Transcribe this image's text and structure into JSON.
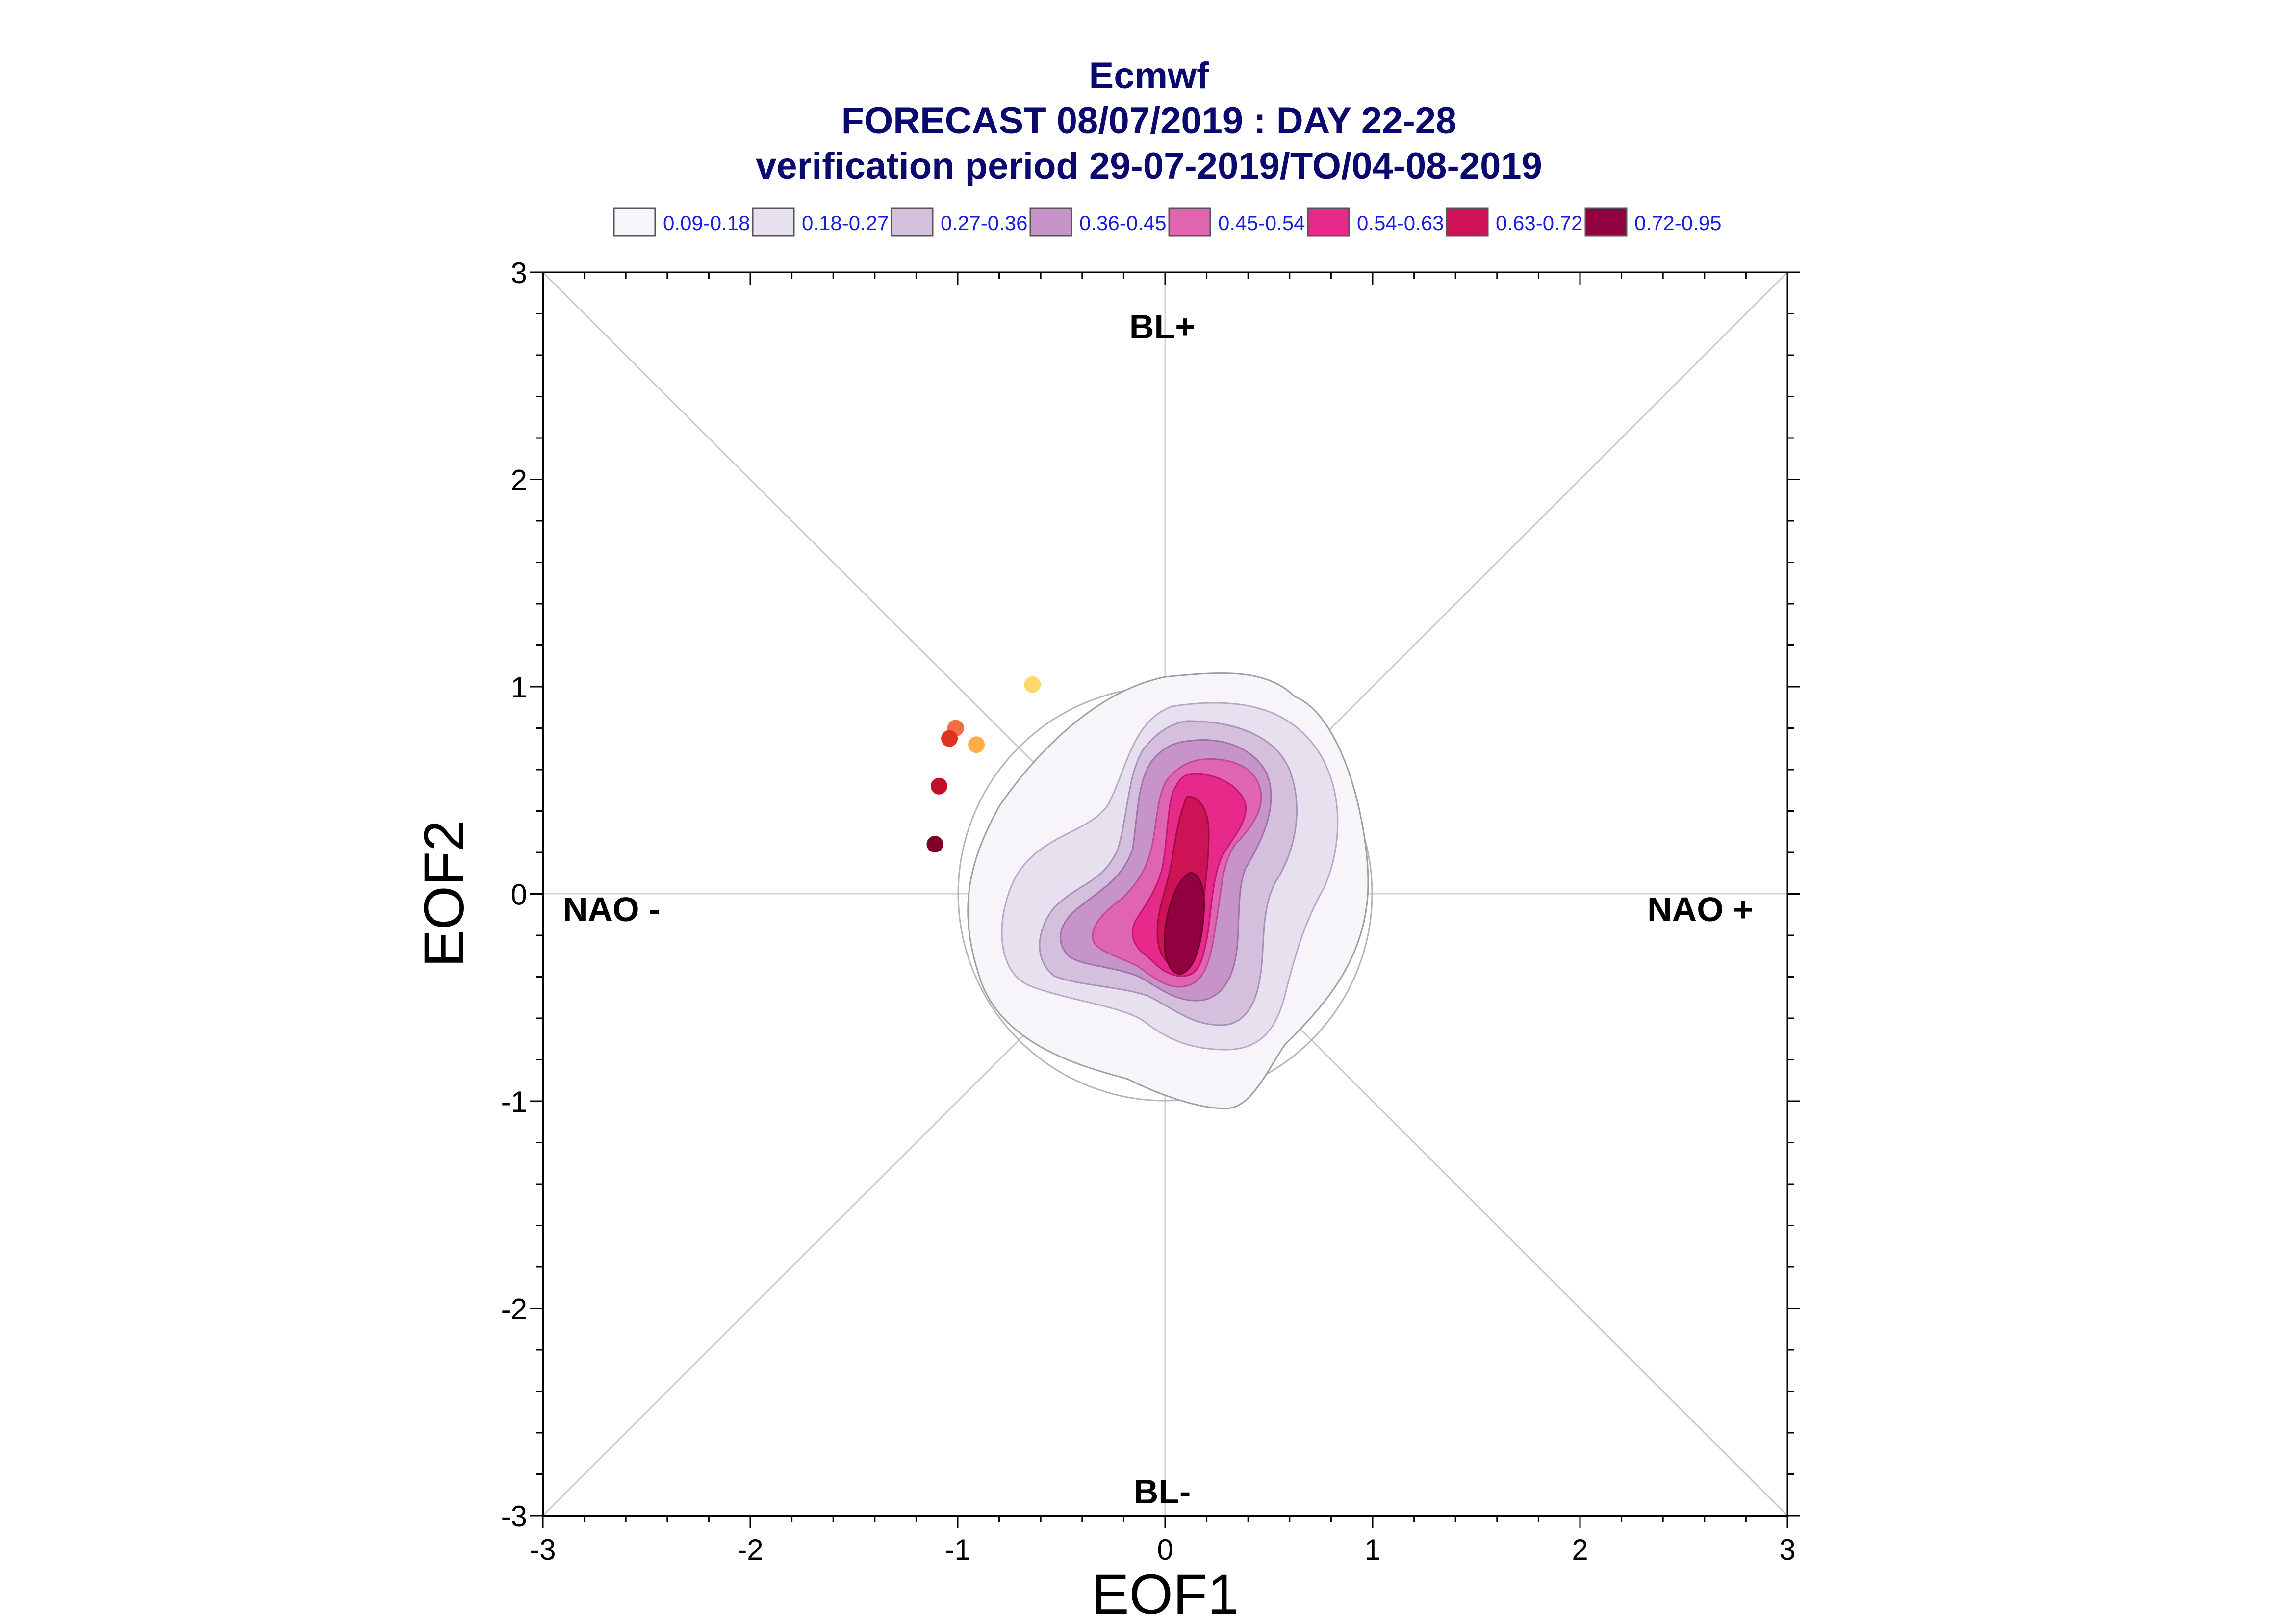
{
  "chart_data": {
    "type": "scatter",
    "title_lines": [
      "Ecmwf",
      "FORECAST 08/07/2019 : DAY 22-28",
      "verification period 29-07-2019/TO/04-08-2019"
    ],
    "xlabel": "EOF1",
    "ylabel": "EOF2",
    "xlim": [
      -3,
      3
    ],
    "ylim": [
      -3,
      3
    ],
    "x_ticks": [
      "-3",
      "-2",
      "-1",
      "0",
      "1",
      "2",
      "3"
    ],
    "y_ticks": [
      "-3",
      "-2",
      "-1",
      "0",
      "1",
      "2",
      "3"
    ],
    "regime_labels": {
      "top": "BL+",
      "bottom": "BL-",
      "left": "NAO -",
      "right": "NAO +"
    },
    "legend": [
      {
        "label": "0.09-0.18",
        "color": "#f7f4fa"
      },
      {
        "label": "0.18-0.27",
        "color": "#e7e0ef"
      },
      {
        "label": "0.27-0.36",
        "color": "#d4bfdd"
      },
      {
        "label": "0.36-0.45",
        "color": "#c794c9"
      },
      {
        "label": "0.45-0.54",
        "color": "#df65b0"
      },
      {
        "label": "0.54-0.63",
        "color": "#e7298a"
      },
      {
        "label": "0.63-0.72",
        "color": "#ce1256"
      },
      {
        "label": "0.72-0.95",
        "color": "#91003f"
      }
    ],
    "density_center": [
      0.05,
      0.0
    ],
    "points": [
      {
        "x": -0.64,
        "y": 1.01,
        "color": "#fdd96b"
      },
      {
        "x": -0.91,
        "y": 0.72,
        "color": "#fdae4b"
      },
      {
        "x": -1.01,
        "y": 0.8,
        "color": "#f46d43"
      },
      {
        "x": -1.04,
        "y": 0.75,
        "color": "#e0301e"
      },
      {
        "x": -1.09,
        "y": 0.52,
        "color": "#c0102a"
      },
      {
        "x": -1.11,
        "y": 0.24,
        "color": "#800026"
      }
    ]
  }
}
